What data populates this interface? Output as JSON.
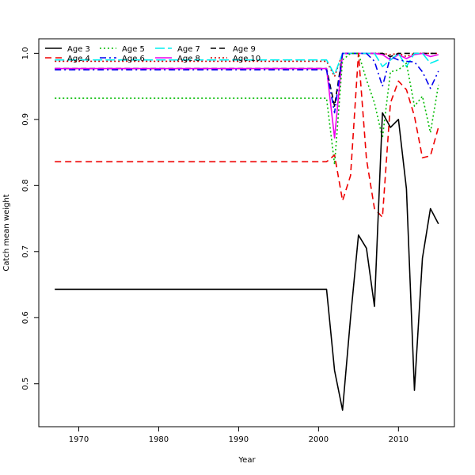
{
  "chart_data": {
    "type": "line",
    "title": "",
    "xlabel": "Year",
    "ylabel": "Catch mean weight",
    "xlim": [
      1965,
      2017
    ],
    "ylim": [
      0.435,
      1.022
    ],
    "xticks": [
      1970,
      1980,
      1990,
      2000,
      2010
    ],
    "yticks": [
      0.5,
      0.6,
      0.7,
      0.8,
      0.9,
      1.0
    ],
    "xtick_labels": [
      "1970",
      "1980",
      "1990",
      "2000",
      "2010"
    ],
    "ytick_labels": [
      "0.5",
      "0.6",
      "0.7",
      "0.8",
      "0.9",
      "1.0"
    ],
    "grid": false,
    "legend_position": "top-left",
    "x": [
      1967,
      1968,
      1969,
      1970,
      1971,
      1972,
      1973,
      1974,
      1975,
      1976,
      1977,
      1978,
      1979,
      1980,
      1981,
      1982,
      1983,
      1984,
      1985,
      1986,
      1987,
      1988,
      1989,
      1990,
      1991,
      1992,
      1993,
      1994,
      1995,
      1996,
      1997,
      1998,
      1999,
      2000,
      2001,
      2002,
      2003,
      2004,
      2005,
      2006,
      2007,
      2008,
      2009,
      2010,
      2011,
      2012,
      2013,
      2014,
      2015
    ],
    "series": [
      {
        "name": "Age 3",
        "color": "#000000",
        "dash": "solid",
        "width": 1.6,
        "values": [
          0.643,
          0.643,
          0.643,
          0.643,
          0.643,
          0.643,
          0.643,
          0.643,
          0.643,
          0.643,
          0.643,
          0.643,
          0.643,
          0.643,
          0.643,
          0.643,
          0.643,
          0.643,
          0.643,
          0.643,
          0.643,
          0.643,
          0.643,
          0.643,
          0.643,
          0.643,
          0.643,
          0.643,
          0.643,
          0.643,
          0.643,
          0.643,
          0.643,
          0.643,
          0.643,
          0.52,
          0.46,
          0.6,
          0.725,
          0.705,
          0.617,
          0.91,
          0.888,
          0.9,
          0.795,
          0.49,
          0.69,
          0.765,
          0.742
        ]
      },
      {
        "name": "Age 4",
        "color": "#ee0000",
        "dash": "8,5",
        "width": 1.6,
        "values": [
          0.836,
          0.836,
          0.836,
          0.836,
          0.836,
          0.836,
          0.836,
          0.836,
          0.836,
          0.836,
          0.836,
          0.836,
          0.836,
          0.836,
          0.836,
          0.836,
          0.836,
          0.836,
          0.836,
          0.836,
          0.836,
          0.836,
          0.836,
          0.836,
          0.836,
          0.836,
          0.836,
          0.836,
          0.836,
          0.836,
          0.836,
          0.836,
          0.836,
          0.836,
          0.836,
          0.846,
          0.777,
          0.815,
          1.0,
          0.84,
          0.765,
          0.752,
          0.925,
          0.958,
          0.945,
          0.905,
          0.842,
          0.845,
          0.888
        ]
      },
      {
        "name": "Age 5",
        "color": "#00bb00",
        "dash": "2,3",
        "width": 1.6,
        "values": [
          0.932,
          0.932,
          0.932,
          0.932,
          0.932,
          0.932,
          0.932,
          0.932,
          0.932,
          0.932,
          0.932,
          0.932,
          0.932,
          0.932,
          0.932,
          0.932,
          0.932,
          0.932,
          0.932,
          0.932,
          0.932,
          0.932,
          0.932,
          0.932,
          0.932,
          0.932,
          0.932,
          0.932,
          0.932,
          0.932,
          0.932,
          0.932,
          0.932,
          0.932,
          0.932,
          0.832,
          0.99,
          1.0,
          1.0,
          0.96,
          0.925,
          0.872,
          0.972,
          0.975,
          0.985,
          0.92,
          0.935,
          0.88,
          0.952
        ]
      },
      {
        "name": "Age 6",
        "color": "#0000ee",
        "dash": "8,4,2,4",
        "width": 1.6,
        "values": [
          0.975,
          0.975,
          0.975,
          0.975,
          0.975,
          0.975,
          0.975,
          0.975,
          0.975,
          0.975,
          0.975,
          0.975,
          0.975,
          0.975,
          0.975,
          0.975,
          0.975,
          0.975,
          0.975,
          0.975,
          0.975,
          0.975,
          0.975,
          0.975,
          0.975,
          0.975,
          0.975,
          0.975,
          0.975,
          0.975,
          0.975,
          0.975,
          0.975,
          0.975,
          0.975,
          0.91,
          1.0,
          1.0,
          1.0,
          1.0,
          0.988,
          0.95,
          0.995,
          0.99,
          0.988,
          0.987,
          0.972,
          0.947,
          0.973
        ]
      },
      {
        "name": "Age 7",
        "color": "#00eeee",
        "dash": "12,4",
        "width": 1.6,
        "values": [
          0.99,
          0.99,
          0.99,
          0.99,
          0.99,
          0.99,
          0.99,
          0.99,
          0.99,
          0.99,
          0.99,
          0.99,
          0.99,
          0.99,
          0.99,
          0.99,
          0.99,
          0.99,
          0.99,
          0.99,
          0.99,
          0.99,
          0.99,
          0.99,
          0.99,
          0.99,
          0.99,
          0.99,
          0.99,
          0.99,
          0.99,
          0.99,
          0.99,
          0.99,
          0.99,
          0.968,
          1.0,
          1.0,
          1.0,
          1.0,
          1.0,
          0.98,
          0.99,
          1.0,
          0.98,
          1.0,
          1.0,
          0.985,
          0.99
        ]
      },
      {
        "name": "Age 8",
        "color": "#ee00ee",
        "dash": "solid",
        "width": 1.6,
        "values": [
          0.977,
          0.977,
          0.977,
          0.977,
          0.977,
          0.977,
          0.977,
          0.977,
          0.977,
          0.977,
          0.977,
          0.977,
          0.977,
          0.977,
          0.977,
          0.977,
          0.977,
          0.977,
          0.977,
          0.977,
          0.977,
          0.977,
          0.977,
          0.977,
          0.977,
          0.977,
          0.977,
          0.977,
          0.977,
          0.977,
          0.977,
          0.977,
          0.977,
          0.977,
          0.977,
          0.872,
          1.0,
          1.0,
          1.0,
          1.0,
          1.0,
          0.998,
          0.99,
          0.998,
          0.992,
          0.998,
          1.0,
          0.995,
          0.998
        ]
      },
      {
        "name": "Age 9",
        "color": "#000000",
        "dash": "7,4",
        "width": 1.6,
        "values": [
          0.977,
          0.977,
          0.977,
          0.977,
          0.977,
          0.977,
          0.977,
          0.977,
          0.977,
          0.977,
          0.977,
          0.977,
          0.977,
          0.977,
          0.977,
          0.977,
          0.977,
          0.977,
          0.977,
          0.977,
          0.977,
          0.977,
          0.977,
          0.977,
          0.977,
          0.977,
          0.977,
          0.977,
          0.977,
          0.977,
          0.977,
          0.977,
          0.977,
          0.977,
          0.977,
          0.92,
          1.0,
          1.0,
          1.0,
          1.0,
          1.0,
          1.0,
          0.995,
          1.0,
          1.0,
          1.0,
          1.0,
          1.0,
          1.0
        ]
      },
      {
        "name": "Age 10",
        "color": "#cc0000",
        "dash": "2,3",
        "width": 1.6,
        "values": [
          0.988,
          0.988,
          0.988,
          0.988,
          0.988,
          0.988,
          0.988,
          0.988,
          0.988,
          0.988,
          0.988,
          0.988,
          0.988,
          0.988,
          0.988,
          0.988,
          0.988,
          0.988,
          0.988,
          0.988,
          0.988,
          0.988,
          0.988,
          0.988,
          0.988,
          0.988,
          0.988,
          0.988,
          0.988,
          0.988,
          0.988,
          0.988,
          0.988,
          0.988,
          0.988,
          0.965,
          1.0,
          1.0,
          1.0,
          1.0,
          1.0,
          1.0,
          0.998,
          1.0,
          0.995,
          1.0,
          1.0,
          1.0,
          1.0
        ]
      }
    ]
  }
}
